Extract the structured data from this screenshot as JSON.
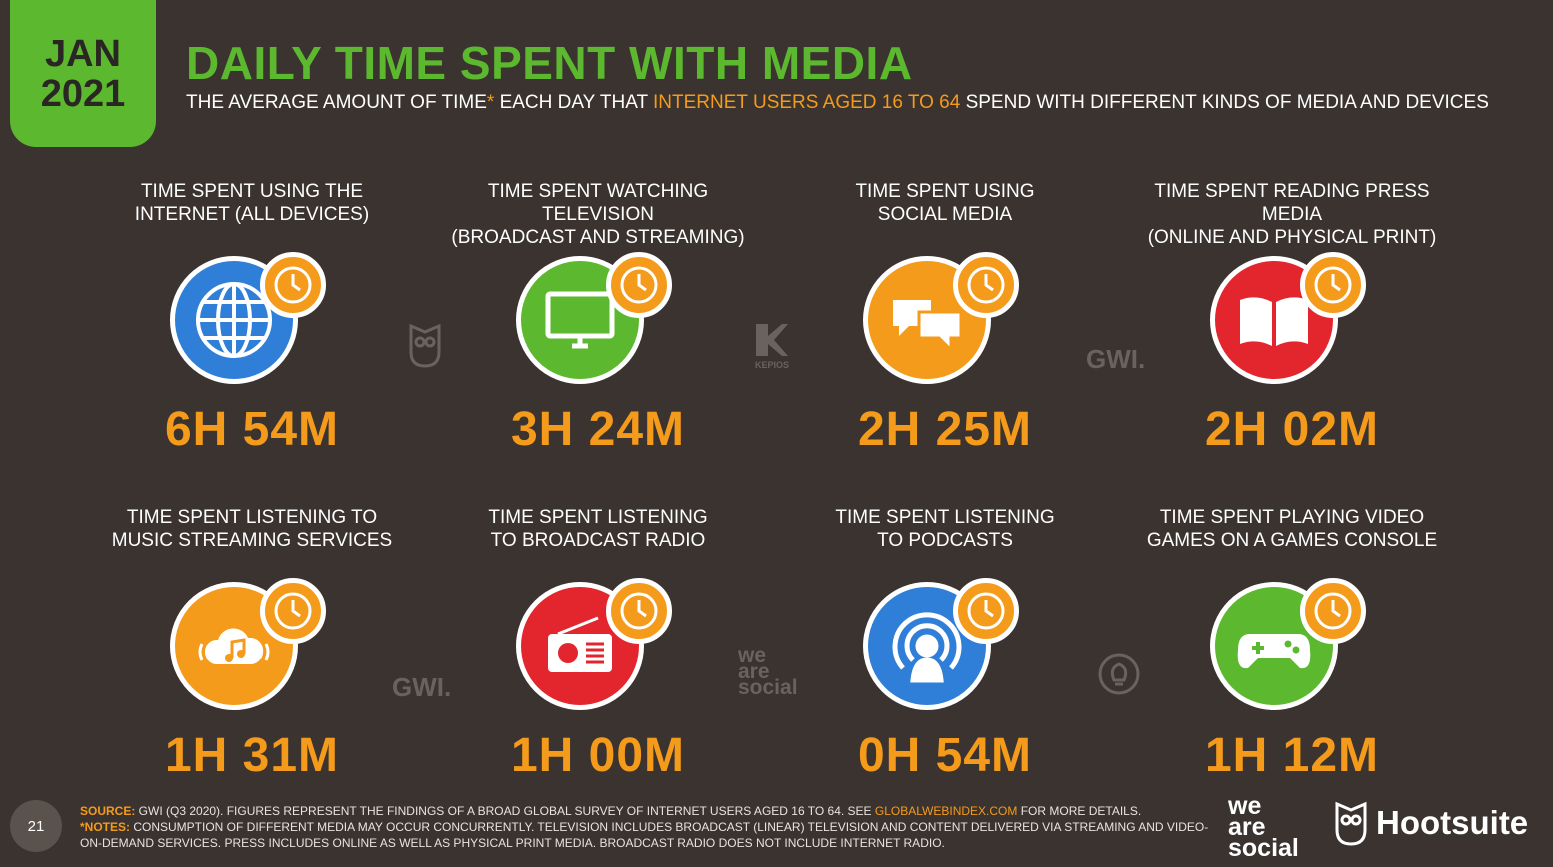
{
  "header": {
    "badge_month": "JAN",
    "badge_year": "2021",
    "title": "DAILY TIME SPENT WITH MEDIA",
    "subtitle_part1": "THE AVERAGE AMOUNT OF TIME",
    "subtitle_star": "*",
    "subtitle_part2": " EACH DAY THAT ",
    "subtitle_highlight": "INTERNET USERS AGED 16 TO 64",
    "subtitle_part3": " SPEND WITH DIFFERENT KINDS OF MEDIA AND DEVICES"
  },
  "colors": {
    "background": "#3a3330",
    "green": "#5cb82e",
    "orange": "#f59b1c",
    "blue": "#2f7fd8",
    "red": "#e3262d"
  },
  "cards": [
    {
      "label_line1": "TIME SPENT USING THE",
      "label_line2": "INTERNET (ALL DEVICES)",
      "value": "6H 54M",
      "icon": "globe-icon",
      "color": "#2f7fd8"
    },
    {
      "label_line1": "TIME SPENT WATCHING TELEVISION",
      "label_line2": "(BROADCAST AND STREAMING)",
      "value": "3H 24M",
      "icon": "tv-icon",
      "color": "#5cb82e"
    },
    {
      "label_line1": "TIME SPENT USING",
      "label_line2": "SOCIAL MEDIA",
      "value": "2H 25M",
      "icon": "chat-bubbles-icon",
      "color": "#f59b1c"
    },
    {
      "label_line1": "TIME SPENT READING PRESS MEDIA",
      "label_line2": "(ONLINE AND PHYSICAL PRINT)",
      "value": "2H 02M",
      "icon": "open-book-icon",
      "color": "#e3262d"
    },
    {
      "label_line1": "TIME SPENT LISTENING TO",
      "label_line2": "MUSIC STREAMING SERVICES",
      "value": "1H 31M",
      "icon": "cloud-music-icon",
      "color": "#f59b1c"
    },
    {
      "label_line1": "TIME SPENT LISTENING",
      "label_line2": "TO BROADCAST RADIO",
      "value": "1H 00M",
      "icon": "radio-icon",
      "color": "#e3262d"
    },
    {
      "label_line1": "TIME SPENT LISTENING",
      "label_line2": "TO PODCASTS",
      "value": "0H 54M",
      "icon": "podcast-icon",
      "color": "#2f7fd8"
    },
    {
      "label_line1": "TIME SPENT PLAYING VIDEO",
      "label_line2": "GAMES ON A GAMES CONSOLE",
      "value": "1H 12M",
      "icon": "gamepad-icon",
      "color": "#5cb82e"
    }
  ],
  "watermarks": {
    "gwi": "GWI.",
    "kepios": "KEPIOS",
    "was_line1": "we",
    "was_line2": "are",
    "was_line3": "social"
  },
  "footer": {
    "page_number": "21",
    "source_key": "SOURCE:",
    "source_text": " GWI (Q3 2020). FIGURES REPRESENT THE FINDINGS OF A BROAD GLOBAL SURVEY OF INTERNET USERS AGED 16 TO 64. SEE ",
    "source_link": "GLOBALWEBINDEX.COM",
    "source_tail": " FOR MORE DETAILS.",
    "notes_key": "*NOTES:",
    "notes_text": " CONSUMPTION OF DIFFERENT MEDIA MAY OCCUR CONCURRENTLY. TELEVISION INCLUDES BROADCAST (LINEAR) TELEVISION AND CONTENT DELIVERED VIA STREAMING AND VIDEO-ON-DEMAND SERVICES. PRESS INCLUDES ONLINE AS WELL AS PHYSICAL PRINT MEDIA. BROADCAST RADIO DOES NOT INCLUDE INTERNET RADIO.",
    "brand_was_line1": "we",
    "brand_was_line2": "are",
    "brand_was_line3": "social",
    "brand_hootsuite": "Hootsuite"
  }
}
